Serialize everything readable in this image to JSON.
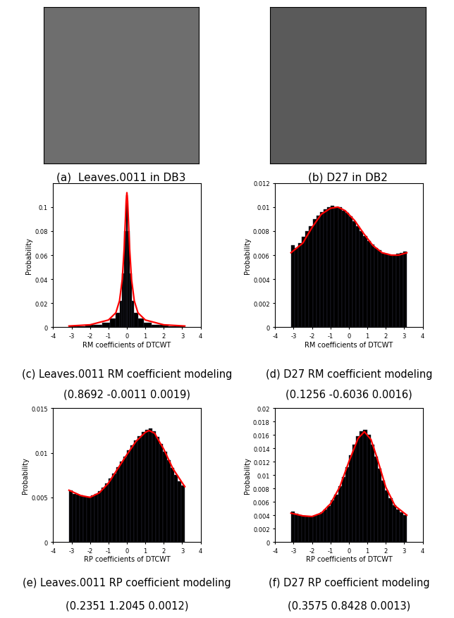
{
  "images": [
    {
      "caption": "(a)  Leaves.0011 in DB3"
    },
    {
      "caption": "(b) D27 in DB2"
    }
  ],
  "chart_data": [
    {
      "type": "histogram",
      "caption": "(c) Leaves.0011 RM coefficient modeling",
      "params": "(0.8692 -0.0011 0.0019)",
      "xlabel": "RM coefficients of DTCWT",
      "ylabel": "Probability",
      "color": "#000000",
      "xlim": [
        -4,
        4
      ],
      "xticks": [
        -4,
        -3,
        -2,
        -1,
        0,
        1,
        2,
        3,
        4
      ],
      "ylim": [
        0,
        0.12
      ],
      "yticks": [
        0,
        0.02,
        0.04,
        0.06,
        0.08,
        0.1
      ],
      "bins": [
        -3.15,
        -2.7,
        -2.25,
        -1.8,
        -1.35,
        -0.9,
        -0.6,
        -0.4,
        -0.25,
        -0.15,
        -0.05,
        0.05,
        0.15,
        0.25,
        0.4,
        0.6,
        0.9,
        1.35,
        1.8,
        2.25,
        2.7,
        3.15
      ],
      "counts": [
        0.001,
        0.001,
        0.002,
        0.002,
        0.004,
        0.007,
        0.012,
        0.022,
        0.045,
        0.08,
        0.11,
        0.08,
        0.045,
        0.022,
        0.012,
        0.007,
        0.004,
        0.002,
        0.002,
        0.001,
        0.001
      ],
      "fit": {
        "type": "line",
        "color": "#ff0000",
        "x": [
          -3.14,
          -2,
          -1,
          -0.6,
          -0.4,
          -0.25,
          -0.15,
          -0.08,
          -0.04,
          0,
          0.04,
          0.08,
          0.15,
          0.25,
          0.4,
          0.6,
          1,
          2,
          3.14
        ],
        "values": [
          0.001,
          0.002,
          0.006,
          0.012,
          0.022,
          0.04,
          0.065,
          0.09,
          0.105,
          0.112,
          0.105,
          0.09,
          0.065,
          0.04,
          0.022,
          0.012,
          0.006,
          0.002,
          0.001
        ]
      }
    },
    {
      "type": "histogram",
      "caption": "(d) D27 RM coefficient modeling",
      "params": "(0.1256 -0.6036 0.0016)",
      "xlabel": "RM coefficients of DTCWT",
      "ylabel": "Probability",
      "color": "#000000",
      "xlim": [
        -4,
        4
      ],
      "xticks": [
        -4,
        -3,
        -2,
        -1,
        0,
        1,
        2,
        3,
        4
      ],
      "ylim": [
        0,
        0.012
      ],
      "yticks": [
        0,
        0.002,
        0.004,
        0.006,
        0.008,
        0.01,
        0.012
      ],
      "bins": [
        -3.1416,
        -2.9452,
        -2.7489,
        -2.5525,
        -2.3562,
        -2.1598,
        -1.9635,
        -1.7671,
        -1.5708,
        -1.3744,
        -1.1781,
        -0.9817,
        -0.7854,
        -0.589,
        -0.3927,
        -0.1963,
        0,
        0.1963,
        0.3927,
        0.589,
        0.7854,
        0.9817,
        1.1781,
        1.3744,
        1.5708,
        1.7671,
        1.9635,
        2.1598,
        2.3562,
        2.5525,
        2.7489,
        2.9452,
        3.1416
      ],
      "counts": [
        0.0068,
        0.0066,
        0.007,
        0.0075,
        0.008,
        0.0084,
        0.009,
        0.0093,
        0.0096,
        0.0098,
        0.01,
        0.0101,
        0.01,
        0.01,
        0.0097,
        0.0095,
        0.0092,
        0.0088,
        0.0084,
        0.008,
        0.0076,
        0.0072,
        0.0069,
        0.0066,
        0.0064,
        0.0062,
        0.0061,
        0.006,
        0.006,
        0.0061,
        0.0062,
        0.0063
      ],
      "fit": {
        "type": "line",
        "color": "#ff0000",
        "x": [
          -3.14,
          -2.5,
          -2,
          -1.5,
          -1,
          -0.6,
          -0.2,
          0.3,
          0.8,
          1.3,
          1.8,
          2.3,
          2.7,
          3.14
        ],
        "values": [
          0.0062,
          0.007,
          0.0083,
          0.0094,
          0.0099,
          0.01,
          0.0097,
          0.0089,
          0.0078,
          0.0068,
          0.0062,
          0.006,
          0.006,
          0.0062
        ]
      }
    },
    {
      "type": "histogram",
      "caption": "(e) Leaves.0011 RP coefficient modeling",
      "params": "(0.2351 1.2045 0.0012)",
      "xlabel": "RP coefficients of DTCWT",
      "ylabel": "Probability",
      "color": "#000000",
      "xlim": [
        -4,
        4
      ],
      "xticks": [
        -4,
        -3,
        -2,
        -1,
        0,
        1,
        2,
        3,
        4
      ],
      "ylim": [
        0,
        0.015
      ],
      "yticks": [
        0,
        0.005,
        0.01,
        0.015
      ],
      "bins": [
        -3.1416,
        -2.9452,
        -2.7489,
        -2.5525,
        -2.3562,
        -2.1598,
        -1.9635,
        -1.7671,
        -1.5708,
        -1.3744,
        -1.1781,
        -0.9817,
        -0.7854,
        -0.589,
        -0.3927,
        -0.1963,
        0,
        0.1963,
        0.3927,
        0.589,
        0.7854,
        0.9817,
        1.1781,
        1.3744,
        1.5708,
        1.7671,
        1.9635,
        2.1598,
        2.3562,
        2.5525,
        2.7489,
        2.9452,
        3.1416
      ],
      "counts": [
        0.0058,
        0.0054,
        0.0053,
        0.0052,
        0.0051,
        0.0051,
        0.0052,
        0.0054,
        0.0057,
        0.0061,
        0.0066,
        0.0071,
        0.0077,
        0.0084,
        0.009,
        0.0096,
        0.0103,
        0.0108,
        0.0114,
        0.0119,
        0.0123,
        0.0126,
        0.0127,
        0.0124,
        0.0118,
        0.011,
        0.0101,
        0.0092,
        0.0083,
        0.0075,
        0.0068,
        0.0063
      ],
      "fit": {
        "type": "line",
        "color": "#ff0000",
        "x": [
          -3.14,
          -2.5,
          -2,
          -1.5,
          -1,
          -0.5,
          0,
          0.5,
          1,
          1.2,
          1.5,
          2,
          2.5,
          3.14
        ],
        "values": [
          0.0058,
          0.0052,
          0.005,
          0.0055,
          0.0066,
          0.0082,
          0.0098,
          0.0113,
          0.0123,
          0.0125,
          0.0122,
          0.0104,
          0.0082,
          0.0062
        ]
      }
    },
    {
      "type": "histogram",
      "caption": "(f) D27 RP coefficient modeling",
      "params": "(0.3575 0.8428 0.0013)",
      "xlabel": "RP coefficients of DTCWT",
      "ylabel": "Probability",
      "color": "#000000",
      "xlim": [
        -4,
        4
      ],
      "xticks": [
        -4,
        -3,
        -2,
        -1,
        0,
        1,
        2,
        3,
        4
      ],
      "ylim": [
        0,
        0.02
      ],
      "yticks": [
        0,
        0.002,
        0.004,
        0.006,
        0.008,
        0.01,
        0.012,
        0.014,
        0.016,
        0.018,
        0.02
      ],
      "bins": [
        -3.1416,
        -2.9452,
        -2.7489,
        -2.5525,
        -2.3562,
        -2.1598,
        -1.9635,
        -1.7671,
        -1.5708,
        -1.3744,
        -1.1781,
        -0.9817,
        -0.7854,
        -0.589,
        -0.3927,
        -0.1963,
        0,
        0.1963,
        0.3927,
        0.589,
        0.7854,
        0.9817,
        1.1781,
        1.3744,
        1.5708,
        1.7671,
        1.9635,
        2.1598,
        2.3562,
        2.5525,
        2.7489,
        2.9452,
        3.1416
      ],
      "counts": [
        0.0045,
        0.0042,
        0.004,
        0.0039,
        0.0038,
        0.0038,
        0.0039,
        0.0041,
        0.0044,
        0.0048,
        0.0054,
        0.0062,
        0.0071,
        0.0083,
        0.0097,
        0.0112,
        0.013,
        0.0146,
        0.0158,
        0.0166,
        0.0168,
        0.016,
        0.0146,
        0.0128,
        0.011,
        0.0092,
        0.0077,
        0.0065,
        0.0055,
        0.0048,
        0.0044,
        0.004
      ],
      "fit": {
        "type": "line",
        "color": "#ff0000",
        "x": [
          -3.14,
          -2.5,
          -2,
          -1.5,
          -1,
          -0.5,
          0,
          0.5,
          0.84,
          1.2,
          1.5,
          2,
          2.5,
          3.14
        ],
        "values": [
          0.0043,
          0.0039,
          0.0038,
          0.0043,
          0.0057,
          0.0082,
          0.012,
          0.0155,
          0.0165,
          0.0153,
          0.0128,
          0.0082,
          0.0054,
          0.004
        ]
      }
    }
  ]
}
